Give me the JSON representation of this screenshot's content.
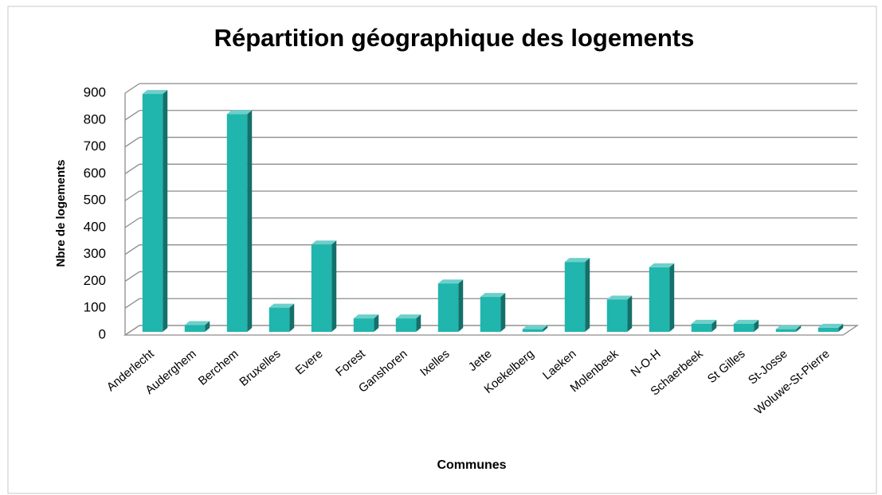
{
  "chart_data": {
    "type": "bar3d",
    "title": "Répartition géographique des logements",
    "x_label": "Communes",
    "y_label": "Nbre de logements",
    "categories": [
      "Anderlecht",
      "Auderghem",
      "Berchem",
      "Bruxelles",
      "Evere",
      "Forest",
      "Ganshoren",
      "Ixelles",
      "Jette",
      "Koekelberg",
      "Laeken",
      "Molenbeek",
      "N-O-H",
      "Schaerbeek",
      "St Gilles",
      "St-Josse",
      "Woluwe-St-Pierre"
    ],
    "values": [
      885,
      25,
      810,
      90,
      325,
      50,
      50,
      180,
      130,
      10,
      260,
      120,
      240,
      30,
      30,
      10,
      15
    ],
    "color": "#20b5ad",
    "ylim": [
      0,
      900
    ],
    "yticks": [
      0,
      100,
      200,
      300,
      400,
      500,
      600,
      700,
      800,
      900
    ],
    "grid": true
  }
}
